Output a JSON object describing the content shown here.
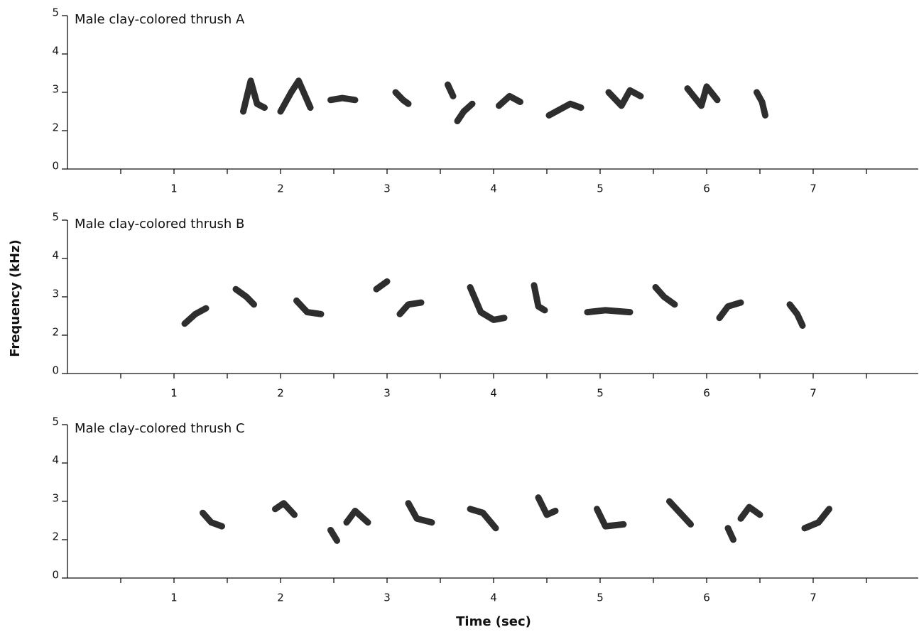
{
  "figure": {
    "ylabel": "Frequency (kHz)",
    "xlabel": "Time (sec)"
  },
  "chart_data": [
    {
      "type": "spectrogram",
      "title": "Male clay-colored thrush A",
      "xlim": [
        0,
        8
      ],
      "xticks": [
        1,
        2,
        3,
        4,
        5,
        6,
        7
      ],
      "xminor": [
        0.5,
        1.5,
        2.5,
        3.5,
        4.5,
        5.5,
        6.5,
        7.5
      ],
      "ylim": [
        0,
        5
      ],
      "yticks": [
        0,
        2,
        3,
        4,
        5
      ],
      "color": "#111111",
      "syllables": [
        {
          "x": [
            1.65,
            1.72,
            1.78,
            1.85
          ],
          "y": [
            2.5,
            3.3,
            2.7,
            2.6
          ]
        },
        {
          "x": [
            2.0,
            2.1,
            2.17,
            2.28
          ],
          "y": [
            2.5,
            3.0,
            3.3,
            2.6
          ]
        },
        {
          "x": [
            2.47,
            2.58,
            2.7
          ],
          "y": [
            2.8,
            2.85,
            2.8
          ]
        },
        {
          "x": [
            3.08,
            3.15,
            3.2
          ],
          "y": [
            3.0,
            2.8,
            2.7
          ]
        },
        {
          "x": [
            3.57,
            3.62
          ],
          "y": [
            3.2,
            2.9
          ]
        },
        {
          "x": [
            3.8,
            3.72,
            3.66
          ],
          "y": [
            2.7,
            2.5,
            2.25
          ]
        },
        {
          "x": [
            4.05,
            4.15,
            4.25
          ],
          "y": [
            2.65,
            2.9,
            2.75
          ]
        },
        {
          "x": [
            4.52,
            4.62,
            4.72,
            4.82
          ],
          "y": [
            2.4,
            2.55,
            2.7,
            2.6
          ]
        },
        {
          "x": [
            5.08,
            5.2,
            5.28,
            5.38
          ],
          "y": [
            3.0,
            2.65,
            3.05,
            2.9
          ]
        },
        {
          "x": [
            5.82,
            5.95,
            6.0,
            6.1
          ],
          "y": [
            3.1,
            2.65,
            3.15,
            2.8
          ]
        },
        {
          "x": [
            6.47,
            6.52,
            6.55
          ],
          "y": [
            3.0,
            2.75,
            2.4
          ]
        }
      ]
    },
    {
      "type": "spectrogram",
      "title": "Male clay-colored thrush B",
      "xlim": [
        0,
        8
      ],
      "xticks": [
        1,
        2,
        3,
        4,
        5,
        6,
        7
      ],
      "xminor": [
        0.5,
        1.5,
        2.5,
        3.5,
        4.5,
        5.5,
        6.5,
        7.5
      ],
      "ylim": [
        0,
        5
      ],
      "yticks": [
        0,
        2,
        3,
        4,
        5
      ],
      "color": "#111111",
      "syllables": [
        {
          "x": [
            1.1,
            1.2,
            1.3
          ],
          "y": [
            2.3,
            2.55,
            2.7
          ]
        },
        {
          "x": [
            1.58,
            1.68,
            1.75
          ],
          "y": [
            3.2,
            3.0,
            2.8
          ]
        },
        {
          "x": [
            2.15,
            2.25,
            2.38
          ],
          "y": [
            2.9,
            2.6,
            2.55
          ]
        },
        {
          "x": [
            2.9,
            3.0
          ],
          "y": [
            3.2,
            3.4
          ]
        },
        {
          "x": [
            3.12,
            3.2,
            3.32
          ],
          "y": [
            2.55,
            2.8,
            2.85
          ]
        },
        {
          "x": [
            3.78,
            3.88,
            4.0,
            4.1
          ],
          "y": [
            3.25,
            2.6,
            2.4,
            2.45
          ]
        },
        {
          "x": [
            4.38,
            4.42,
            4.48
          ],
          "y": [
            3.3,
            2.75,
            2.65
          ]
        },
        {
          "x": [
            4.88,
            5.05,
            5.28
          ],
          "y": [
            2.6,
            2.65,
            2.6
          ]
        },
        {
          "x": [
            5.52,
            5.6,
            5.7
          ],
          "y": [
            3.25,
            3.0,
            2.8
          ]
        },
        {
          "x": [
            6.12,
            6.2,
            6.32
          ],
          "y": [
            2.45,
            2.75,
            2.85
          ]
        },
        {
          "x": [
            6.78,
            6.85,
            6.9
          ],
          "y": [
            2.8,
            2.55,
            2.25
          ]
        }
      ]
    },
    {
      "type": "spectrogram",
      "title": "Male clay-colored thrush C",
      "xlim": [
        0,
        8
      ],
      "xticks": [
        1,
        2,
        3,
        4,
        5,
        6,
        7
      ],
      "xminor": [
        0.5,
        1.5,
        2.5,
        3.5,
        4.5,
        5.5,
        6.5,
        7.5
      ],
      "ylim": [
        0,
        5
      ],
      "yticks": [
        0,
        2,
        3,
        4,
        5
      ],
      "color": "#111111",
      "syllables": [
        {
          "x": [
            1.27,
            1.35,
            1.45
          ],
          "y": [
            2.7,
            2.45,
            2.35
          ]
        },
        {
          "x": [
            1.95,
            2.03,
            2.13
          ],
          "y": [
            2.8,
            2.95,
            2.65
          ]
        },
        {
          "x": [
            2.47,
            2.53
          ],
          "y": [
            2.25,
            1.95
          ]
        },
        {
          "x": [
            2.62,
            2.7,
            2.82
          ],
          "y": [
            2.45,
            2.75,
            2.45
          ]
        },
        {
          "x": [
            3.2,
            3.28,
            3.42
          ],
          "y": [
            2.95,
            2.55,
            2.45
          ]
        },
        {
          "x": [
            3.78,
            3.9,
            4.02
          ],
          "y": [
            2.8,
            2.7,
            2.3
          ]
        },
        {
          "x": [
            4.42,
            4.5,
            4.58
          ],
          "y": [
            3.1,
            2.65,
            2.75
          ]
        },
        {
          "x": [
            4.97,
            5.05,
            5.22
          ],
          "y": [
            2.8,
            2.35,
            2.4
          ]
        },
        {
          "x": [
            5.65,
            5.75,
            5.85
          ],
          "y": [
            3.0,
            2.7,
            2.4
          ]
        },
        {
          "x": [
            6.2,
            6.25
          ],
          "y": [
            2.3,
            2.0
          ]
        },
        {
          "x": [
            6.32,
            6.4,
            6.5
          ],
          "y": [
            2.55,
            2.85,
            2.65
          ]
        },
        {
          "x": [
            6.92,
            7.05,
            7.15
          ],
          "y": [
            2.3,
            2.45,
            2.8
          ]
        }
      ]
    }
  ]
}
